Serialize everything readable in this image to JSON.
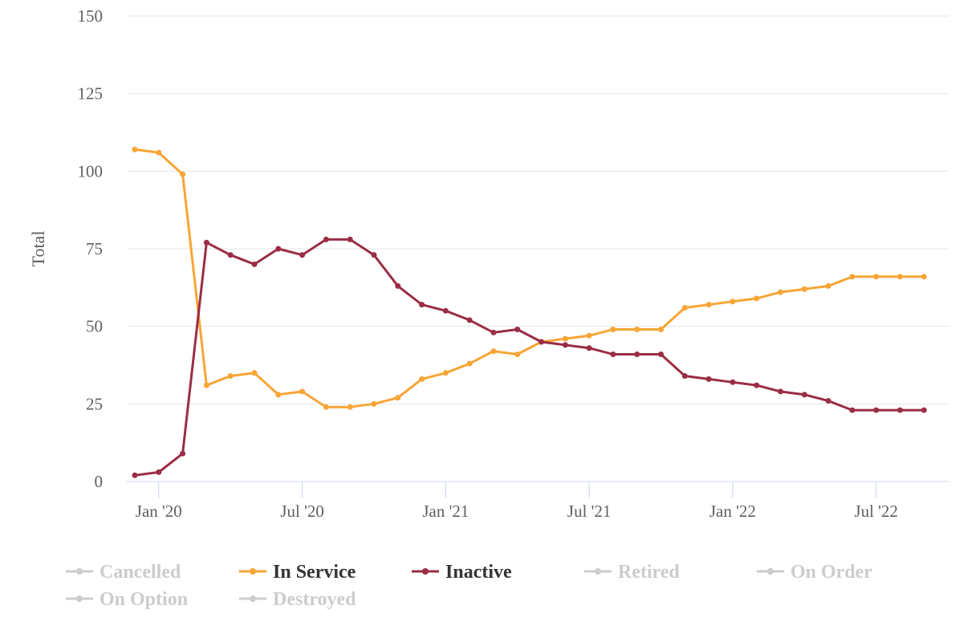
{
  "chart_data": {
    "type": "line",
    "ylabel": "Total",
    "ylim": [
      0,
      150
    ],
    "yticks": [
      0,
      25,
      50,
      75,
      100,
      125,
      150
    ],
    "xtick_labels": [
      "Jan '20",
      "Jul '20",
      "Jan '21",
      "Jul '21",
      "Jan '22",
      "Jul '22"
    ],
    "x": [
      "2019-12",
      "2020-01",
      "2020-02",
      "2020-03",
      "2020-04",
      "2020-05",
      "2020-06",
      "2020-07",
      "2020-08",
      "2020-09",
      "2020-10",
      "2020-11",
      "2020-12",
      "2021-01",
      "2021-02",
      "2021-03",
      "2021-04",
      "2021-05",
      "2021-06",
      "2021-07",
      "2021-08",
      "2021-09",
      "2021-10",
      "2021-11",
      "2021-12",
      "2022-01",
      "2022-02",
      "2022-03",
      "2022-04",
      "2022-05",
      "2022-06",
      "2022-07",
      "2022-08",
      "2022-09"
    ],
    "grid": true,
    "legend_position": "bottom",
    "series": [
      {
        "name": "In Service",
        "color": "#f7a535",
        "values": [
          107,
          106,
          99,
          31,
          34,
          35,
          28,
          29,
          24,
          24,
          25,
          27,
          33,
          35,
          38,
          42,
          41,
          45,
          46,
          47,
          49,
          49,
          49,
          56,
          57,
          58,
          59,
          61,
          62,
          63,
          66,
          66,
          66,
          66
        ]
      },
      {
        "name": "Inactive",
        "color": "#9b2d45",
        "values": [
          2,
          3,
          9,
          77,
          73,
          70,
          75,
          73,
          78,
          78,
          73,
          63,
          57,
          55,
          52,
          48,
          49,
          45,
          44,
          43,
          41,
          41,
          41,
          34,
          33,
          32,
          31,
          29,
          28,
          26,
          23,
          23,
          23,
          23
        ]
      }
    ],
    "legend": [
      {
        "name": "Cancelled",
        "active": false
      },
      {
        "name": "In Service",
        "active": true,
        "color": "#f7a535"
      },
      {
        "name": "Inactive",
        "active": true,
        "color": "#9b2d45"
      },
      {
        "name": "Retired",
        "active": false
      },
      {
        "name": "On Order",
        "active": false
      },
      {
        "name": "On Option",
        "active": false
      },
      {
        "name": "Destroyed",
        "active": false
      }
    ],
    "colors": {
      "grid": "#e6e6e6",
      "axis": "#ccd6eb",
      "legend_active_text": "#333333",
      "legend_inactive": "#cccccc"
    }
  }
}
